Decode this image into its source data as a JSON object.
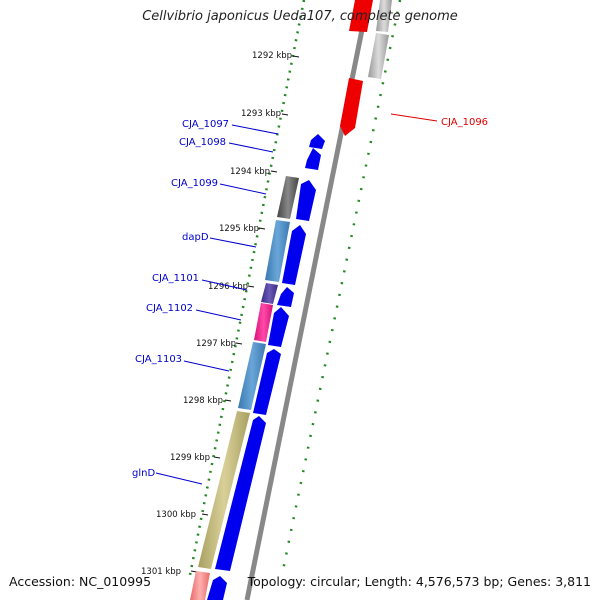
{
  "header": {
    "title": "Cellvibrio japonicus Ueda107, complete genome"
  },
  "footer": {
    "accession": "Accession: NC_010995",
    "topology": "Topology: circular; Length: 4,576,573 bp; Genes: 3,811"
  },
  "scale_ticks": [
    "1292 kbp",
    "1293 kbp",
    "1294 kbp",
    "1295 kbp",
    "1296 kbp",
    "1297 kbp",
    "1298 kbp",
    "1299 kbp",
    "1300 kbp",
    "1301 kbp"
  ],
  "gene_labels": [
    {
      "name": "CJA_1096",
      "color": "#dd0000"
    },
    {
      "name": "CJA_1097",
      "color": "#0000cc"
    },
    {
      "name": "CJA_1098",
      "color": "#0000cc"
    },
    {
      "name": "CJA_1099",
      "color": "#0000cc"
    },
    {
      "name": "dapD",
      "color": "#0000cc"
    },
    {
      "name": "CJA_1101",
      "color": "#0000cc"
    },
    {
      "name": "CJA_1102",
      "color": "#0000cc"
    },
    {
      "name": "CJA_1103",
      "color": "#0000cc"
    },
    {
      "name": "glnD",
      "color": "#0000cc"
    }
  ],
  "colors": {
    "cds": "#0000ee",
    "rna_red": "#ee0000",
    "backbone": "#888888",
    "dotted_ring": "#228822"
  }
}
